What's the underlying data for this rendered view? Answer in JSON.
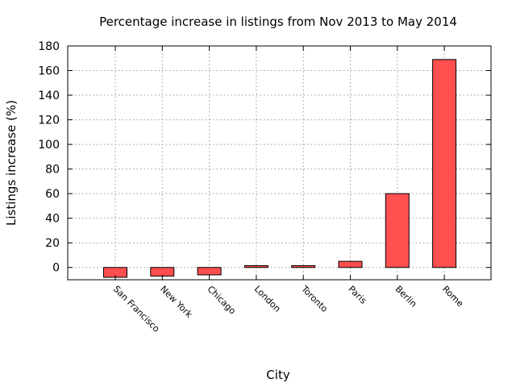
{
  "chart_data": {
    "type": "bar",
    "title": "Percentage increase in listings from Nov 2013 to May 2014",
    "xlabel": "City",
    "ylabel": "Listings increase (%)",
    "categories": [
      "San Francisco",
      "New York",
      "Chicago",
      "London",
      "Toronto",
      "Paris",
      "Berlin",
      "Rome"
    ],
    "values": [
      -8,
      -7,
      -6,
      1.5,
      1.5,
      5,
      60,
      169
    ],
    "ylim": [
      -10,
      180
    ],
    "yticks": [
      0,
      20,
      40,
      60,
      80,
      100,
      120,
      140,
      160,
      180
    ],
    "grid": true,
    "bar_color": "#ff4f4f"
  }
}
